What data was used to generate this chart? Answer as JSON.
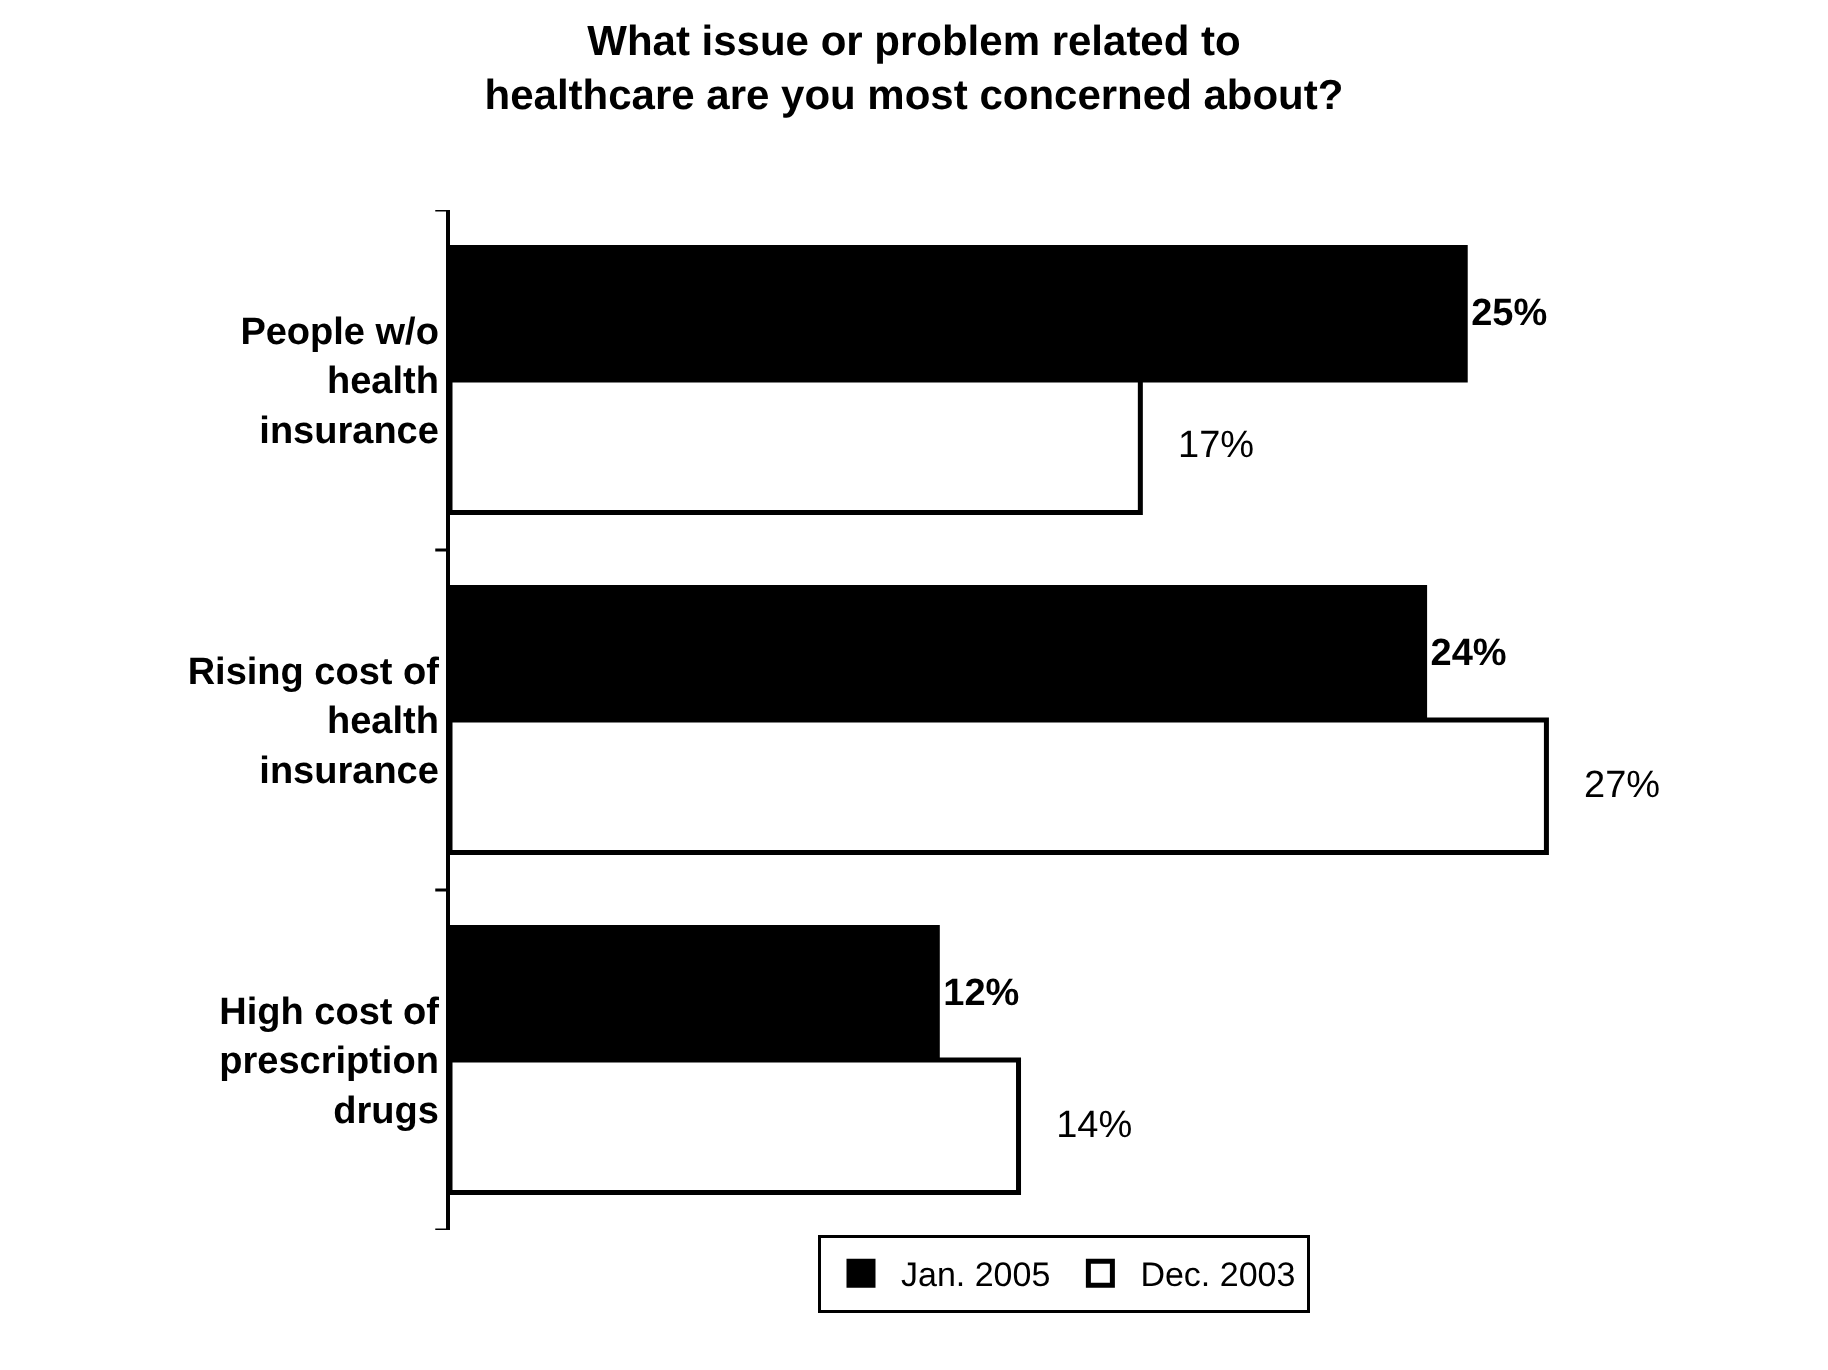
{
  "chart_data": {
    "type": "bar",
    "orientation": "horizontal",
    "title": "What issue or problem related to healthcare are you most concerned about?",
    "categories": [
      "People w/o health insurance",
      "Rising cost of health insurance",
      "High cost of prescription drugs"
    ],
    "series": [
      {
        "name": "Jan. 2005",
        "color": "#000000",
        "values": [
          25,
          24,
          12
        ],
        "value_labels": [
          "25%",
          "24%",
          "12%"
        ]
      },
      {
        "name": "Dec. 2003",
        "color": "#ffffff",
        "values": [
          17,
          27,
          14
        ],
        "value_labels": [
          "17%",
          "27%",
          "14%"
        ]
      }
    ],
    "legend": "bottom"
  }
}
